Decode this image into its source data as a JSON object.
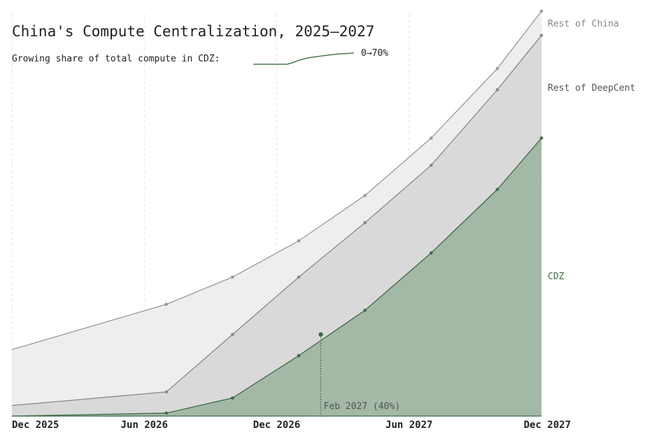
{
  "chart_data": {
    "type": "area",
    "title": "China's Compute Centralization, 2025–2027",
    "subtitle": "Growing share of total compute in CDZ:",
    "subtitle_range": "0→70%",
    "x_ticks": [
      "Dec 2025",
      "Jun 2026",
      "Dec 2026",
      "Jun 2027",
      "Dec 2027"
    ],
    "x": [
      "Dec 2025",
      "Jul 2026",
      "Oct 2026",
      "Jan 2027",
      "Apr 2027",
      "Jul 2027",
      "Oct 2027",
      "Dec 2027"
    ],
    "stacking": "cumulative",
    "series": [
      {
        "name": "CDZ",
        "color": "#3d6b45",
        "fill": "#a3b8a5",
        "values": [
          0,
          1,
          6,
          20,
          35,
          54,
          75,
          92
        ]
      },
      {
        "name": "Rest of DeepCent",
        "color": "#888888",
        "fill": "#d9d9d9",
        "values": [
          3.5,
          8,
          27,
          46,
          64,
          83,
          108,
          126
        ]
      },
      {
        "name": "Rest of China",
        "color": "#999999",
        "fill": "#eeeeee",
        "values": [
          22,
          37,
          46,
          58,
          73,
          92,
          115,
          134
        ]
      }
    ],
    "annotations": [
      {
        "x": "Feb 2027",
        "value": 27,
        "text": "Feb 2027 (40%)"
      }
    ],
    "legend": "right-labels",
    "grid": "vertical-dashed"
  }
}
